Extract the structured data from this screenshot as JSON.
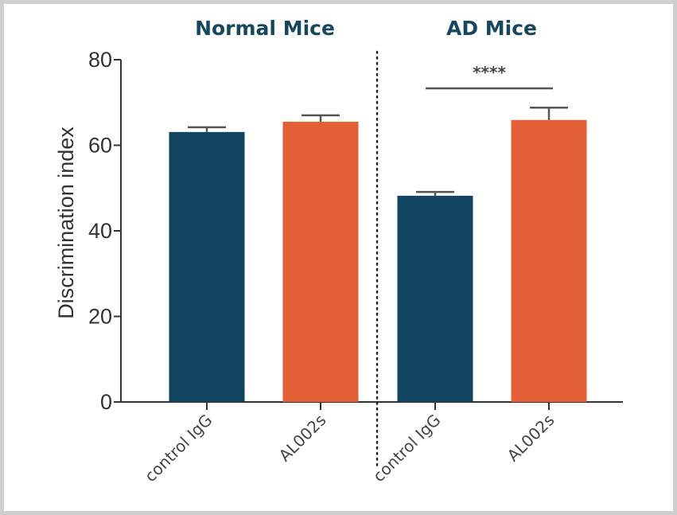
{
  "chart_data": {
    "type": "bar",
    "title": "",
    "xlabel": "",
    "ylabel": "Discrimination index",
    "ylim": [
      0,
      80
    ],
    "yticks": [
      0,
      20,
      40,
      60,
      80
    ],
    "grid": false,
    "groups": [
      {
        "name": "Normal Mice",
        "categories": [
          "control IgG",
          "AL002s"
        ]
      },
      {
        "name": "AD Mice",
        "categories": [
          "control IgG",
          "AL002s"
        ]
      }
    ],
    "categories": [
      "control IgG",
      "AL002s",
      "control IgG",
      "AL002s"
    ],
    "values": [
      63.1,
      65.5,
      48.2,
      65.9
    ],
    "error_upper": [
      64.2,
      67.0,
      49.1,
      68.8
    ],
    "bar_colors": [
      "#12455f",
      "#e35f36",
      "#12455f",
      "#e35f36"
    ],
    "group_divider": "dotted vertical line between groups",
    "annotations": [
      {
        "text": "****",
        "between": [
          2,
          3
        ],
        "meaning": "significance bracket"
      }
    ]
  },
  "colors": {
    "control": "#12455f",
    "treatment": "#e35f36",
    "title": "#17475f",
    "axis": "#333333",
    "frame": "#cfcfcf"
  }
}
